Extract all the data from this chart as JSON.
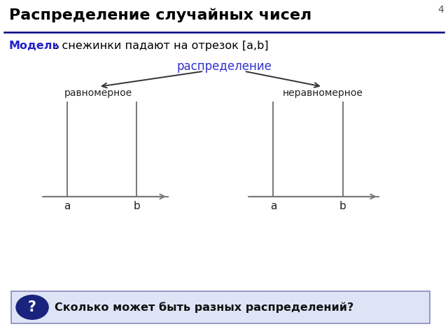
{
  "title": "Распределение случайных чисел",
  "model_label": "Модель",
  "model_text": ": снежинки падают на отрезок [a,b]",
  "center_label": "распределение",
  "left_label": "равномерное",
  "right_label": "неравномерное",
  "question_text": "Сколько может быть разных распределений?",
  "slide_number": "4",
  "bg_color": "#ffffff",
  "title_color": "#000000",
  "model_color": "#2222cc",
  "center_label_color": "#3333cc",
  "question_box_color": "#dde4f5",
  "question_border_color": "#8888bb",
  "question_circle_color": "#1a237e",
  "line_color": "#777777",
  "axis_color": "#777777",
  "separator_color": "#000080"
}
